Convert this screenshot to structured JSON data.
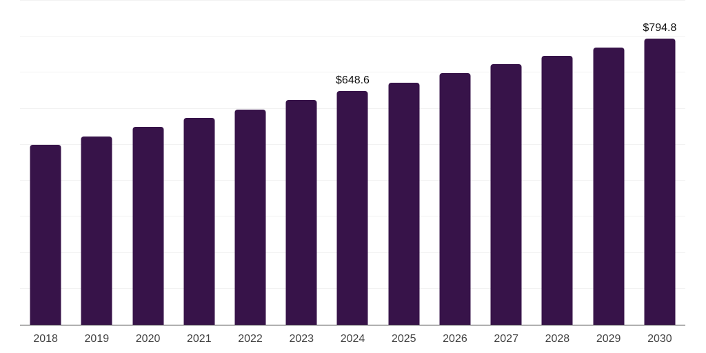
{
  "chart_data": {
    "type": "bar",
    "title": "",
    "xlabel": "",
    "ylabel": "",
    "categories": [
      "2018",
      "2019",
      "2020",
      "2021",
      "2022",
      "2023",
      "2024",
      "2025",
      "2026",
      "2027",
      "2028",
      "2029",
      "2030"
    ],
    "values": [
      499.0,
      523.5,
      549.9,
      574.1,
      598.0,
      624.3,
      648.6,
      672.5,
      698.3,
      723.1,
      746.4,
      770.1,
      794.8
    ],
    "data_labels": [
      "",
      "",
      "",
      "",
      "",
      "",
      "$648.6",
      "",
      "",
      "",
      "",
      "",
      "$794.8"
    ],
    "ylim": [
      0,
      900
    ],
    "gridline_step": 100,
    "grid": true,
    "legend": "none",
    "colors": {
      "bar": "#371349",
      "gridline": "#f2f2f2",
      "axis_line": "#2e2e2e",
      "tick_label": "#424242",
      "value_label": "#101010",
      "background": "#ffffff"
    }
  }
}
